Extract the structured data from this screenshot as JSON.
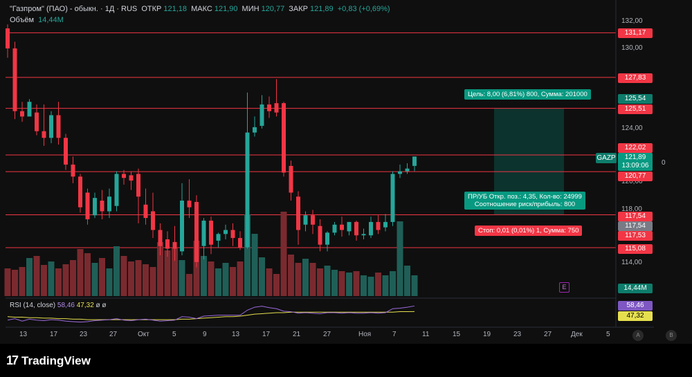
{
  "header": {
    "symbol": "\"Газпром\" (ПАО) - обыкн. · 1Д · RUS",
    "open_label": "ОТКР",
    "open_value": "121,18",
    "high_label": "МАКС",
    "high_value": "121,90",
    "low_label": "МИН",
    "low_value": "120,77",
    "close_label": "ЗАКР",
    "close_value": "121,89",
    "change": "+0,83 (+0,69%)",
    "volume_label": "Объём",
    "volume_value": "14,44M"
  },
  "rsi": {
    "label": "RSI (14, close)",
    "value1": "58,46",
    "value2": "47,32",
    "icons": "ø ø",
    "tag_rsi": "58,46",
    "tag_ma": "47,32"
  },
  "price_axis": {
    "ticks": [
      "132,00",
      "130,00",
      "124,00",
      "120,00",
      "118,00",
      "114,00"
    ]
  },
  "price_tags": {
    "t1": "131,17",
    "t2": "127,83",
    "t3": "125,54",
    "t4": "125,51",
    "t5": "122,02",
    "symbol": "GAZP",
    "last": "121,89",
    "countdown": "13:09:06",
    "t6": "120,77",
    "t7": "117,54",
    "t8": "117,54",
    "t9": "117,53",
    "t10": "115,08",
    "volume": "14,44M",
    "zero": "0"
  },
  "position": {
    "target": "Цель: 8,00 (6,81%) 800, Сумма: 201000",
    "pnl_line1": "ПР/УБ Откр. поз.: 4,35, Кол-во: 24999",
    "pnl_line2": "Соотношение риск/прибыль: 800",
    "stop": "Стоп: 0,01 (0,01%) 1, Сумма: 750"
  },
  "time_axis": {
    "labels": [
      "13",
      "17",
      "23",
      "27",
      "Окт",
      "5",
      "9",
      "13",
      "17",
      "21",
      "27",
      "Ноя",
      "7",
      "11",
      "15",
      "19",
      "23",
      "27",
      "Дек",
      "5"
    ]
  },
  "buttons": {
    "a": "A",
    "b": "B",
    "e": "E"
  },
  "logo": {
    "mark": "17",
    "text": "TradingView"
  },
  "colors": {
    "up": "#26a69a",
    "down": "#f23645",
    "rsi": "#9c6ade",
    "rsi_ma": "#e6e04f",
    "target_zone": "#0c3a33",
    "line": "#f23645"
  },
  "chart_data": {
    "type": "candlestick",
    "symbol": "GAZP",
    "ylim": [
      113,
      133
    ],
    "candles": [
      {
        "o": 131.5,
        "h": 131.8,
        "c": 130.0,
        "l": 129.3
      },
      {
        "o": 130.0,
        "h": 130.5,
        "c": 125.3,
        "l": 124.7
      },
      {
        "o": 125.3,
        "h": 126.0,
        "c": 124.9,
        "l": 124.5
      },
      {
        "o": 124.9,
        "h": 126.2,
        "c": 126.0,
        "l": 124.9
      },
      {
        "o": 125.2,
        "h": 125.8,
        "c": 123.8,
        "l": 123.5
      },
      {
        "o": 123.8,
        "h": 125.8,
        "c": 123.3,
        "l": 122.7
      },
      {
        "o": 123.3,
        "h": 125.3,
        "c": 125.0,
        "l": 122.9
      },
      {
        "o": 125.0,
        "h": 126.0,
        "c": 123.3,
        "l": 122.8
      },
      {
        "o": 123.3,
        "h": 123.6,
        "c": 121.3,
        "l": 120.9
      },
      {
        "o": 121.3,
        "h": 121.9,
        "c": 120.4,
        "l": 119.9
      },
      {
        "o": 120.4,
        "h": 120.6,
        "c": 118.1,
        "l": 117.7
      },
      {
        "o": 119.2,
        "h": 119.5,
        "c": 117.2,
        "l": 116.8
      },
      {
        "o": 117.5,
        "h": 119.2,
        "c": 118.8,
        "l": 117.3
      },
      {
        "o": 118.6,
        "h": 119.4,
        "c": 117.8,
        "l": 117.2
      },
      {
        "o": 117.8,
        "h": 119.5,
        "c": 118.9,
        "l": 117.3
      },
      {
        "o": 118.2,
        "h": 120.8,
        "c": 120.6,
        "l": 117.8
      },
      {
        "o": 120.6,
        "h": 120.9,
        "c": 120.3,
        "l": 119.8
      },
      {
        "o": 120.5,
        "h": 120.8,
        "c": 120.1,
        "l": 119.4
      },
      {
        "o": 120.6,
        "h": 121.0,
        "c": 118.9,
        "l": 116.9
      },
      {
        "o": 118.3,
        "h": 119.5,
        "c": 117.3,
        "l": 116.8
      },
      {
        "o": 117.8,
        "h": 119.2,
        "c": 116.4,
        "l": 115.8
      },
      {
        "o": 116.4,
        "h": 116.9,
        "c": 115.2,
        "l": 114.5
      },
      {
        "o": 115.7,
        "h": 116.3,
        "c": 115.0,
        "l": 114.4
      },
      {
        "o": 115.5,
        "h": 116.7,
        "c": 115.0,
        "l": 114.1
      },
      {
        "o": 114.8,
        "h": 119.9,
        "c": 118.6,
        "l": 114.5
      },
      {
        "o": 118.6,
        "h": 120.2,
        "c": 118.1,
        "l": 117.3
      },
      {
        "o": 118.5,
        "h": 119.0,
        "c": 114.0,
        "l": 113.6
      },
      {
        "o": 115.2,
        "h": 117.3,
        "c": 117.1,
        "l": 114.2
      },
      {
        "o": 117.1,
        "h": 117.4,
        "c": 115.3,
        "l": 114.6
      },
      {
        "o": 115.6,
        "h": 116.2,
        "c": 116.1,
        "l": 115.1
      },
      {
        "o": 116.1,
        "h": 116.8,
        "c": 116.4,
        "l": 115.7
      },
      {
        "o": 116.4,
        "h": 116.9,
        "c": 115.8,
        "l": 115.2
      },
      {
        "o": 115.8,
        "h": 116.3,
        "c": 115.1,
        "l": 114.9
      },
      {
        "o": 115.1,
        "h": 126.7,
        "c": 123.7,
        "l": 115.0
      },
      {
        "o": 123.7,
        "h": 124.9,
        "c": 124.1,
        "l": 123.4
      },
      {
        "o": 124.2,
        "h": 126.5,
        "c": 125.8,
        "l": 124.0
      },
      {
        "o": 125.8,
        "h": 126.4,
        "c": 125.3,
        "l": 124.8
      },
      {
        "o": 125.9,
        "h": 127.7,
        "c": 125.2,
        "l": 124.9
      },
      {
        "o": 125.9,
        "h": 126.0,
        "c": 120.7,
        "l": 120.4
      },
      {
        "o": 121.2,
        "h": 121.6,
        "c": 119.2,
        "l": 118.6
      },
      {
        "o": 118.9,
        "h": 119.3,
        "c": 116.4,
        "l": 115.3
      },
      {
        "o": 116.8,
        "h": 117.8,
        "c": 117.5,
        "l": 116.3
      },
      {
        "o": 117.5,
        "h": 117.9,
        "c": 116.8,
        "l": 116.1
      },
      {
        "o": 116.7,
        "h": 117.2,
        "c": 115.3,
        "l": 114.8
      },
      {
        "o": 115.3,
        "h": 116.3,
        "c": 116.2,
        "l": 114.8
      },
      {
        "o": 116.2,
        "h": 117.0,
        "c": 116.8,
        "l": 116.0
      },
      {
        "o": 116.8,
        "h": 117.4,
        "c": 116.4,
        "l": 115.9
      },
      {
        "o": 116.3,
        "h": 117.0,
        "c": 117.0,
        "l": 116.0
      },
      {
        "o": 117.0,
        "h": 117.1,
        "c": 116.0,
        "l": 115.6
      },
      {
        "o": 116.0,
        "h": 116.5,
        "c": 116.1,
        "l": 115.7
      },
      {
        "o": 116.0,
        "h": 117.4,
        "c": 117.0,
        "l": 115.8
      },
      {
        "o": 117.0,
        "h": 117.5,
        "c": 116.4,
        "l": 116.1
      },
      {
        "o": 116.6,
        "h": 117.6,
        "c": 117.0,
        "l": 116.3
      },
      {
        "o": 117.0,
        "h": 120.8,
        "c": 120.6,
        "l": 116.7
      },
      {
        "o": 120.6,
        "h": 121.3,
        "c": 120.8,
        "l": 120.3
      },
      {
        "o": 120.8,
        "h": 121.4,
        "c": 121.0,
        "l": 120.6
      },
      {
        "o": 121.2,
        "h": 121.9,
        "c": 121.9,
        "l": 120.8
      }
    ],
    "volumes": [
      40,
      38,
      42,
      55,
      58,
      45,
      50,
      40,
      46,
      52,
      68,
      62,
      48,
      55,
      40,
      72,
      58,
      50,
      52,
      46,
      42,
      78,
      66,
      70,
      52,
      32,
      80,
      58,
      50,
      40,
      48,
      42,
      50,
      118,
      90,
      56,
      40,
      32,
      122,
      60,
      48,
      54,
      48,
      40,
      44,
      38,
      36,
      34,
      36,
      30,
      28,
      34,
      30,
      36,
      108,
      44,
      30
    ],
    "horizontal_levels": [
      131.17,
      127.83,
      125.51,
      122.02,
      120.77,
      117.54,
      115.08
    ],
    "target_zone": {
      "from": 117.54,
      "to": 125.54
    },
    "rsi": [
      30,
      33,
      28,
      32,
      30,
      29,
      31,
      30,
      28,
      27,
      26,
      27,
      29,
      30,
      31,
      33,
      30,
      29,
      31,
      32,
      30,
      28,
      29,
      30,
      37,
      36,
      33,
      38,
      39,
      40,
      40,
      40,
      40,
      50,
      56,
      58,
      55,
      53,
      48,
      47,
      44,
      45,
      44,
      43,
      45,
      45,
      44,
      45,
      44,
      44,
      45,
      44,
      45,
      53,
      54,
      56,
      58.46
    ],
    "rsi_ma": [
      37,
      36,
      36,
      35,
      35,
      34,
      34,
      33,
      33,
      32,
      32,
      31,
      31,
      31,
      31,
      31,
      31,
      31,
      31,
      31,
      31,
      31,
      31,
      31,
      32,
      32,
      33,
      34,
      35,
      36,
      37,
      37,
      38,
      40,
      42,
      43,
      44,
      45,
      45,
      46,
      46,
      46,
      46,
      46,
      46,
      46,
      46,
      46,
      46,
      46,
      46,
      46,
      46,
      46,
      47,
      47,
      47.32
    ]
  }
}
